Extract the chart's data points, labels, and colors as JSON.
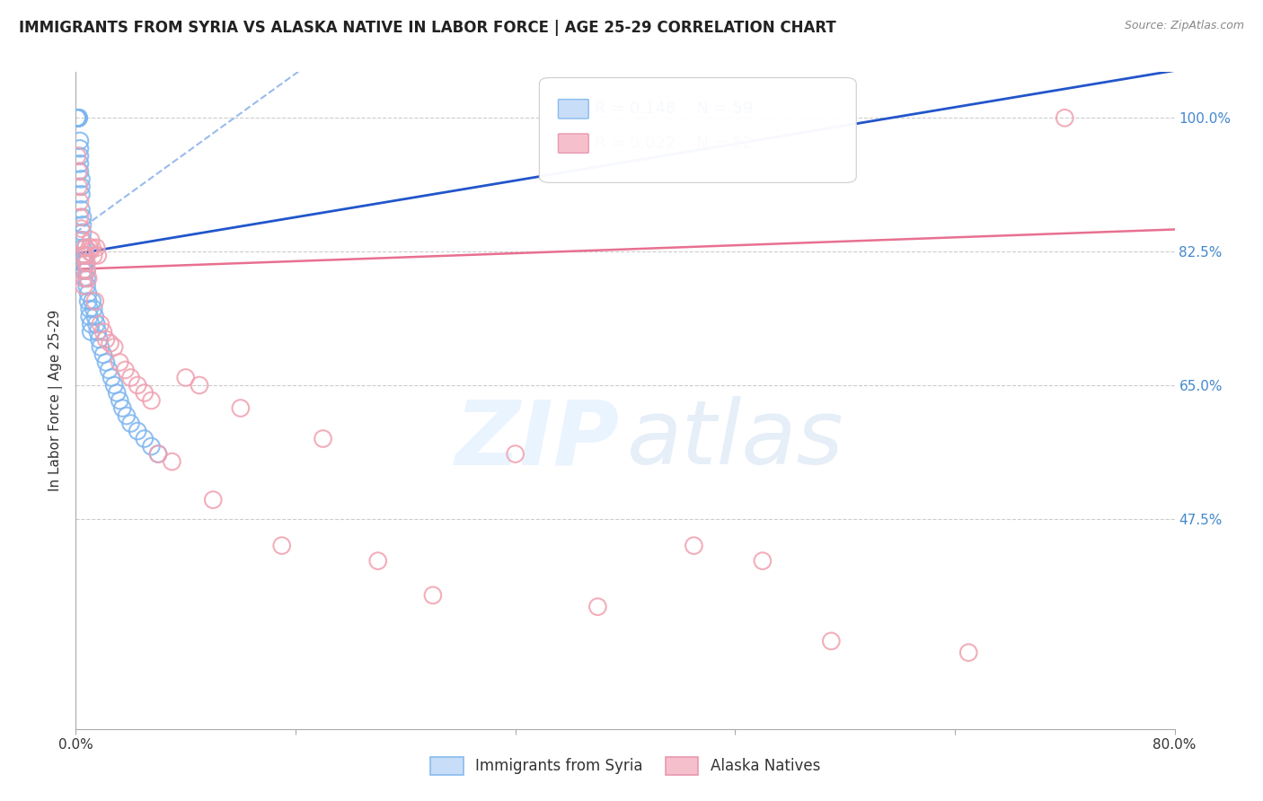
{
  "title": "IMMIGRANTS FROM SYRIA VS ALASKA NATIVE IN LABOR FORCE | AGE 25-29 CORRELATION CHART",
  "source": "Source: ZipAtlas.com",
  "ylabel": "In Labor Force | Age 25-29",
  "ytick_labels": [
    "100.0%",
    "82.5%",
    "65.0%",
    "47.5%"
  ],
  "ytick_values": [
    1.0,
    0.825,
    0.65,
    0.475
  ],
  "blue_r": "R = 0.148",
  "blue_n": "N = 59",
  "pink_r": "R = 0.022",
  "pink_n": "N = 52",
  "blue_color": "#7eb6f0",
  "blue_line_color": "#2255cc",
  "blue_dashed_color": "#99bbee",
  "pink_color": "#f0a0b0",
  "pink_line_color": "#e87090",
  "blue_scatter_x": [
    0.001,
    0.001,
    0.001,
    0.002,
    0.002,
    0.002,
    0.002,
    0.002,
    0.003,
    0.003,
    0.003,
    0.003,
    0.003,
    0.004,
    0.004,
    0.004,
    0.004,
    0.005,
    0.005,
    0.005,
    0.005,
    0.005,
    0.006,
    0.006,
    0.006,
    0.006,
    0.007,
    0.007,
    0.007,
    0.008,
    0.008,
    0.008,
    0.009,
    0.009,
    0.01,
    0.01,
    0.011,
    0.011,
    0.012,
    0.013,
    0.014,
    0.015,
    0.016,
    0.017,
    0.018,
    0.02,
    0.022,
    0.024,
    0.026,
    0.028,
    0.03,
    0.032,
    0.034,
    0.037,
    0.04,
    0.045,
    0.05,
    0.055,
    0.06
  ],
  "blue_scatter_y": [
    1.0,
    1.0,
    1.0,
    1.0,
    1.0,
    1.0,
    1.0,
    1.0,
    0.97,
    0.96,
    0.95,
    0.94,
    0.93,
    0.92,
    0.91,
    0.9,
    0.88,
    0.87,
    0.86,
    0.85,
    0.84,
    0.83,
    0.82,
    0.81,
    0.8,
    0.79,
    0.83,
    0.82,
    0.81,
    0.8,
    0.79,
    0.78,
    0.77,
    0.76,
    0.75,
    0.74,
    0.73,
    0.72,
    0.76,
    0.75,
    0.74,
    0.73,
    0.72,
    0.71,
    0.7,
    0.69,
    0.68,
    0.67,
    0.66,
    0.65,
    0.64,
    0.63,
    0.62,
    0.61,
    0.6,
    0.59,
    0.58,
    0.57,
    0.56
  ],
  "pink_scatter_x": [
    0.001,
    0.002,
    0.002,
    0.003,
    0.003,
    0.004,
    0.004,
    0.005,
    0.005,
    0.006,
    0.006,
    0.007,
    0.007,
    0.008,
    0.008,
    0.009,
    0.01,
    0.01,
    0.011,
    0.012,
    0.013,
    0.014,
    0.015,
    0.016,
    0.018,
    0.02,
    0.022,
    0.025,
    0.028,
    0.032,
    0.036,
    0.04,
    0.045,
    0.05,
    0.055,
    0.06,
    0.07,
    0.08,
    0.09,
    0.1,
    0.12,
    0.15,
    0.18,
    0.22,
    0.26,
    0.32,
    0.38,
    0.45,
    0.5,
    0.55,
    0.65,
    0.72
  ],
  "pink_scatter_y": [
    0.95,
    0.93,
    0.91,
    0.89,
    0.87,
    0.855,
    0.84,
    0.82,
    0.8,
    0.79,
    0.78,
    0.83,
    0.82,
    0.81,
    0.8,
    0.79,
    0.825,
    0.83,
    0.84,
    0.83,
    0.82,
    0.76,
    0.83,
    0.82,
    0.73,
    0.72,
    0.71,
    0.705,
    0.7,
    0.68,
    0.67,
    0.66,
    0.65,
    0.64,
    0.63,
    0.56,
    0.55,
    0.66,
    0.65,
    0.5,
    0.62,
    0.44,
    0.58,
    0.42,
    0.375,
    0.56,
    0.36,
    0.44,
    0.42,
    0.315,
    0.3,
    1.0
  ]
}
